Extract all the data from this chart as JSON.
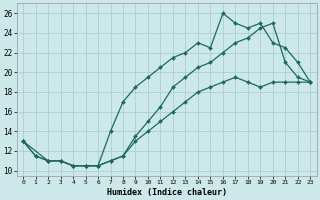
{
  "xlabel": "Humidex (Indice chaleur)",
  "bg_color": "#cce8e8",
  "grid_color": "#aacece",
  "line_color": "#1a6b5a",
  "xlim": [
    -0.5,
    23.5
  ],
  "ylim": [
    9.5,
    27
  ],
  "xticks": [
    0,
    1,
    2,
    3,
    4,
    5,
    6,
    7,
    8,
    9,
    10,
    11,
    12,
    13,
    14,
    15,
    16,
    17,
    18,
    19,
    20,
    21,
    22,
    23
  ],
  "yticks": [
    10,
    12,
    14,
    16,
    18,
    20,
    22,
    24,
    26
  ],
  "line1_x": [
    0,
    1,
    2,
    3,
    4,
    5,
    6,
    7,
    8,
    9,
    10,
    11,
    12,
    13,
    14,
    15,
    16,
    17,
    18,
    19,
    20,
    21,
    22,
    23
  ],
  "line1_y": [
    13,
    11.5,
    11,
    11,
    10.5,
    10.5,
    10.5,
    11,
    11.5,
    13.5,
    15,
    16.5,
    18.5,
    19.5,
    20.5,
    21,
    22,
    23,
    23.5,
    24.5,
    25,
    21,
    19.5,
    19
  ],
  "line2_x": [
    0,
    1,
    2,
    3,
    4,
    5,
    6,
    7,
    8,
    9,
    10,
    11,
    12,
    13,
    14,
    15,
    16,
    17,
    18,
    19,
    20,
    21,
    22,
    23
  ],
  "line2_y": [
    13,
    11.5,
    11,
    11,
    10.5,
    10.5,
    10.5,
    14,
    17,
    18.5,
    19.5,
    20.5,
    21.5,
    22,
    23,
    22.5,
    26,
    25,
    24.5,
    25,
    23,
    22.5,
    21,
    19
  ],
  "line3_x": [
    0,
    2,
    3,
    4,
    5,
    6,
    7,
    8,
    9,
    10,
    11,
    12,
    13,
    14,
    15,
    16,
    17,
    18,
    19,
    20,
    21,
    22,
    23
  ],
  "line3_y": [
    13,
    11,
    11,
    10.5,
    10.5,
    10.5,
    11,
    11.5,
    13,
    14,
    15,
    16,
    17,
    18,
    18.5,
    19,
    19.5,
    19,
    18.5,
    19,
    19,
    19,
    19
  ]
}
